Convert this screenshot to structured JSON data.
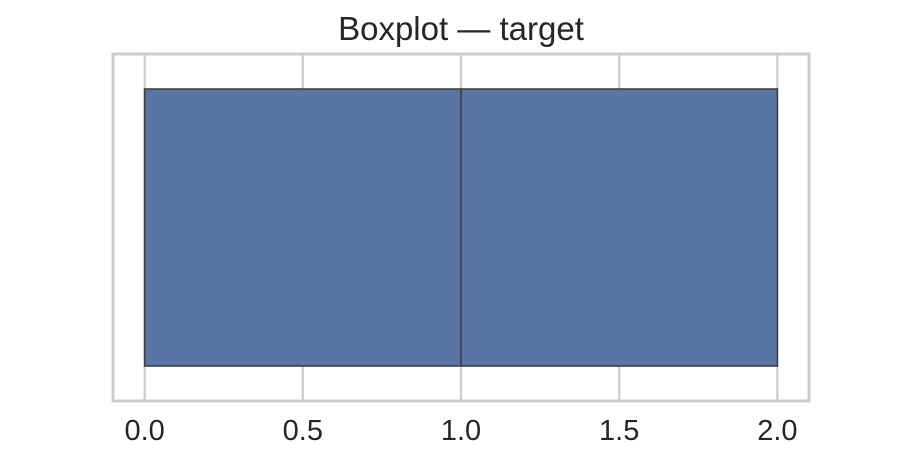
{
  "chart_data": {
    "type": "boxplot",
    "title": "Boxplot — target",
    "xlabel": "",
    "ylabel": "",
    "orientation": "horizontal",
    "xlim": [
      -0.1,
      2.1
    ],
    "xticks": [
      0.0,
      0.5,
      1.0,
      1.5,
      2.0
    ],
    "xtick_labels": [
      "0.0",
      "0.5",
      "1.0",
      "1.5",
      "2.0"
    ],
    "grid": true,
    "box": {
      "min": 0.0,
      "q1": 0.0,
      "median": 1.0,
      "q3": 2.0,
      "max": 2.0
    },
    "colors": {
      "box_fill": "#5975a4",
      "box_edge": "#3f3f3f",
      "grid": "#cccccc",
      "axes_edge": "#cccccc",
      "text": "#262626"
    }
  }
}
